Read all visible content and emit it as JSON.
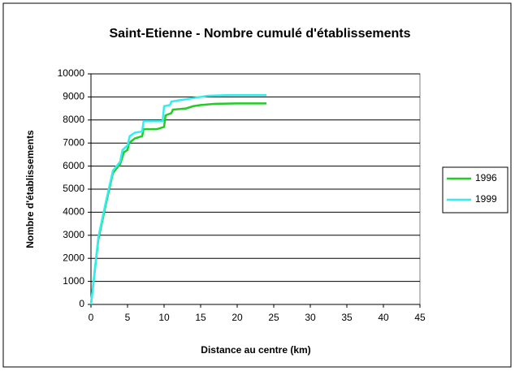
{
  "chart_data": {
    "type": "line",
    "title": "Saint-Etienne - Nombre cumulé d'établissements",
    "xlabel": "Distance au centre (km)",
    "ylabel": "Nombre d'établissements",
    "xlim": [
      0,
      45
    ],
    "xticks": [
      0,
      5,
      10,
      15,
      20,
      25,
      30,
      35,
      40,
      45
    ],
    "ylim": [
      0,
      10000
    ],
    "yticks": [
      0,
      1000,
      2000,
      3000,
      4000,
      5000,
      6000,
      7000,
      8000,
      9000,
      10000
    ],
    "grid": true,
    "legend": "right",
    "series": [
      {
        "name": "1996",
        "color": "#22cc22",
        "x": [
          0,
          1,
          2,
          3,
          3.5,
          4,
          4.5,
          5,
          5.2,
          6,
          7,
          7.2,
          9,
          10,
          10.2,
          11,
          11.2,
          13,
          14,
          15,
          17,
          20,
          24
        ],
        "values": [
          0,
          2800,
          4300,
          5700,
          5900,
          6100,
          6600,
          6700,
          7000,
          7200,
          7300,
          7600,
          7600,
          7700,
          8200,
          8300,
          8450,
          8500,
          8600,
          8650,
          8700,
          8720,
          8720
        ]
      },
      {
        "name": "1999",
        "color": "#33eeee",
        "x": [
          0,
          1,
          2,
          3,
          3.5,
          4,
          4.3,
          5,
          5.3,
          6,
          7,
          7.2,
          9.8,
          10,
          10.8,
          11,
          12,
          14,
          16,
          19,
          24
        ],
        "values": [
          0,
          2900,
          4400,
          5800,
          6000,
          6200,
          6700,
          6900,
          7300,
          7450,
          7500,
          7950,
          7950,
          8600,
          8650,
          8800,
          8850,
          8950,
          9050,
          9080,
          9080
        ]
      }
    ]
  }
}
